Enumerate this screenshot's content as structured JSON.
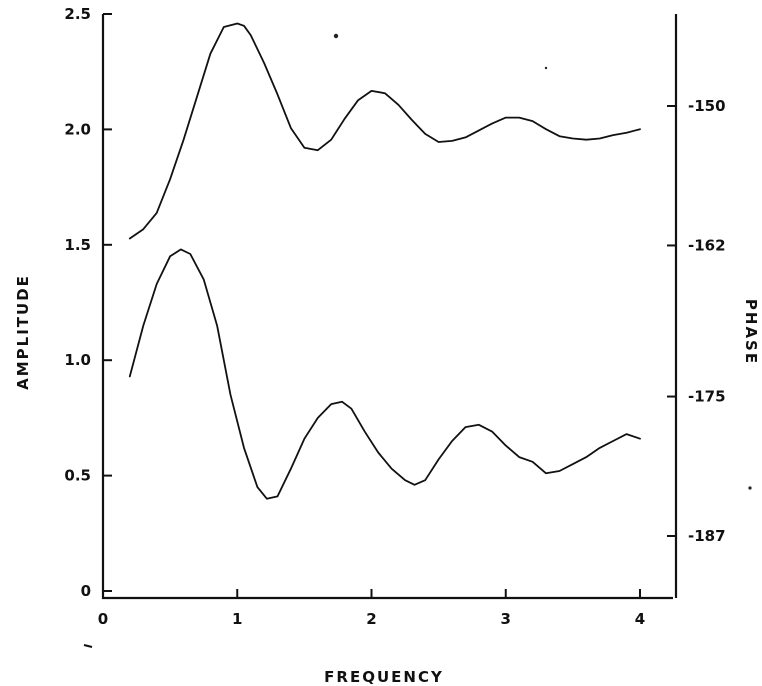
{
  "chart_data": {
    "type": "line",
    "title": "",
    "xlabel": "FREQUENCY",
    "ylabel": "AMPLITUDE",
    "y2label": "PHASE",
    "xlim": [
      0,
      4.3
    ],
    "ylim": [
      0,
      2.5
    ],
    "y2lim": [
      -192,
      -144
    ],
    "x_ticks": [
      "0",
      "1",
      "2",
      "3",
      "4"
    ],
    "y_ticks": [
      "0",
      "0.5",
      "1.0",
      "1.5",
      "2.0",
      "2.5"
    ],
    "y2_ticks": [
      "-150",
      "-162",
      "-175",
      "-187"
    ],
    "y2_tick_values": [
      -150,
      -162,
      -175,
      -187
    ],
    "grid": false,
    "series": [
      {
        "axis": "right",
        "x": [
          0.2,
          0.3,
          0.4,
          0.5,
          0.6,
          0.7,
          0.8,
          0.9,
          1.0,
          1.05,
          1.1,
          1.2,
          1.3,
          1.4,
          1.5,
          1.6,
          1.7,
          1.8,
          1.9,
          2.0,
          2.1,
          2.2,
          2.3,
          2.4,
          2.5,
          2.6,
          2.7,
          2.8,
          2.9,
          3.0,
          3.1,
          3.2,
          3.3,
          3.4,
          3.5,
          3.6,
          3.7,
          3.8,
          3.9,
          4.0
        ],
        "values": [
          -161.4,
          -160.6,
          -159.2,
          -156.3,
          -152.9,
          -149.2,
          -145.5,
          -143.2,
          -142.9,
          -143.1,
          -143.9,
          -146.3,
          -149.0,
          -151.9,
          -153.6,
          -153.8,
          -152.9,
          -151.1,
          -149.5,
          -148.7,
          -148.9,
          -149.9,
          -151.2,
          -152.4,
          -153.1,
          -153.0,
          -152.7,
          -152.1,
          -151.5,
          -151.0,
          -151.0,
          -151.3,
          -152.0,
          -152.6,
          -152.8,
          -152.9,
          -152.8,
          -152.5,
          -152.3,
          -152.0
        ]
      },
      {
        "axis": "left",
        "x": [
          0.2,
          0.3,
          0.4,
          0.5,
          0.58,
          0.65,
          0.75,
          0.85,
          0.95,
          1.05,
          1.15,
          1.22,
          1.3,
          1.4,
          1.5,
          1.6,
          1.7,
          1.78,
          1.85,
          1.95,
          2.05,
          2.15,
          2.25,
          2.32,
          2.4,
          2.5,
          2.6,
          2.7,
          2.8,
          2.9,
          3.0,
          3.1,
          3.2,
          3.3,
          3.4,
          3.5,
          3.6,
          3.7,
          3.8,
          3.9,
          4.0
        ],
        "values": [
          0.93,
          1.15,
          1.33,
          1.45,
          1.48,
          1.46,
          1.35,
          1.15,
          0.85,
          0.62,
          0.45,
          0.4,
          0.41,
          0.53,
          0.66,
          0.75,
          0.81,
          0.82,
          0.79,
          0.69,
          0.6,
          0.53,
          0.48,
          0.46,
          0.48,
          0.57,
          0.65,
          0.71,
          0.72,
          0.69,
          0.63,
          0.58,
          0.56,
          0.51,
          0.52,
          0.55,
          0.58,
          0.62,
          0.65,
          0.68,
          0.66
        ]
      }
    ]
  }
}
